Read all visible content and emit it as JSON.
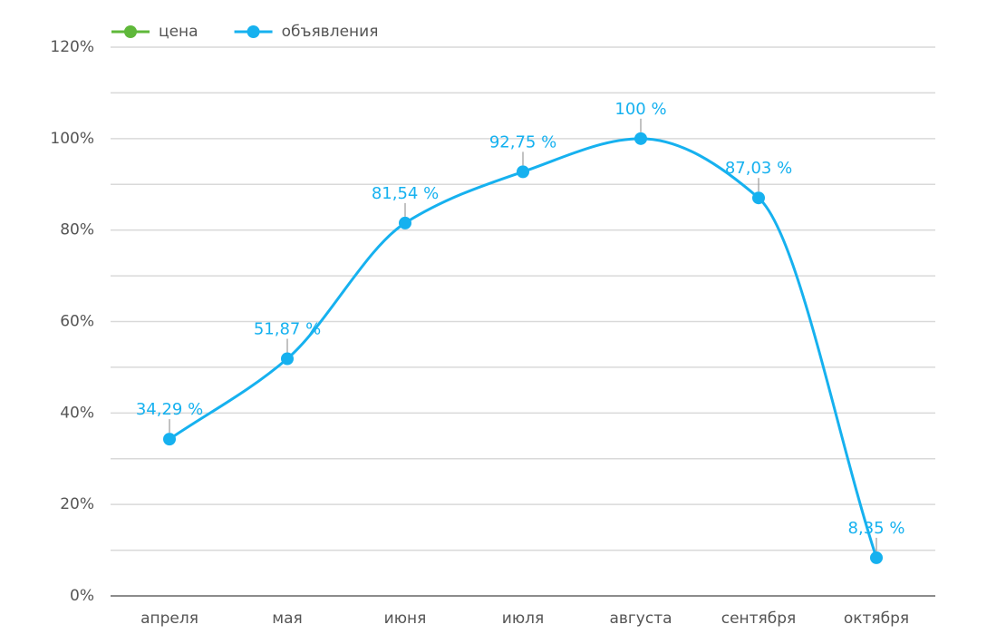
{
  "chart_data": {
    "type": "line",
    "categories": [
      "апреля",
      "мая",
      "июня",
      "июля",
      "августа",
      "сентября",
      "октября"
    ],
    "series": [
      {
        "name": "цена",
        "color": "#5fb83a",
        "values": [
          null,
          null,
          null,
          null,
          null,
          null,
          null
        ]
      },
      {
        "name": "объявления",
        "color": "#16b1ef",
        "values": [
          34.29,
          51.87,
          81.54,
          92.75,
          100,
          87.03,
          8.35
        ],
        "value_labels": [
          "34,29 %",
          "51,87 %",
          "81,54 %",
          "92,75 %",
          "100 %",
          "87,03 %",
          "8,35 %"
        ]
      }
    ],
    "ylim": [
      0,
      120
    ],
    "yticks": [
      {
        "value": 0,
        "label": "0%"
      },
      {
        "value": 20,
        "label": "20%"
      },
      {
        "value": 40,
        "label": "40%"
      },
      {
        "value": 60,
        "label": "60%"
      },
      {
        "value": 80,
        "label": "80%"
      },
      {
        "value": 100,
        "label": "100%"
      },
      {
        "value": 120,
        "label": "120%"
      }
    ],
    "minor_yticks": [
      10,
      30,
      50,
      70,
      90,
      110
    ],
    "grid": true,
    "legend": "top-left"
  }
}
